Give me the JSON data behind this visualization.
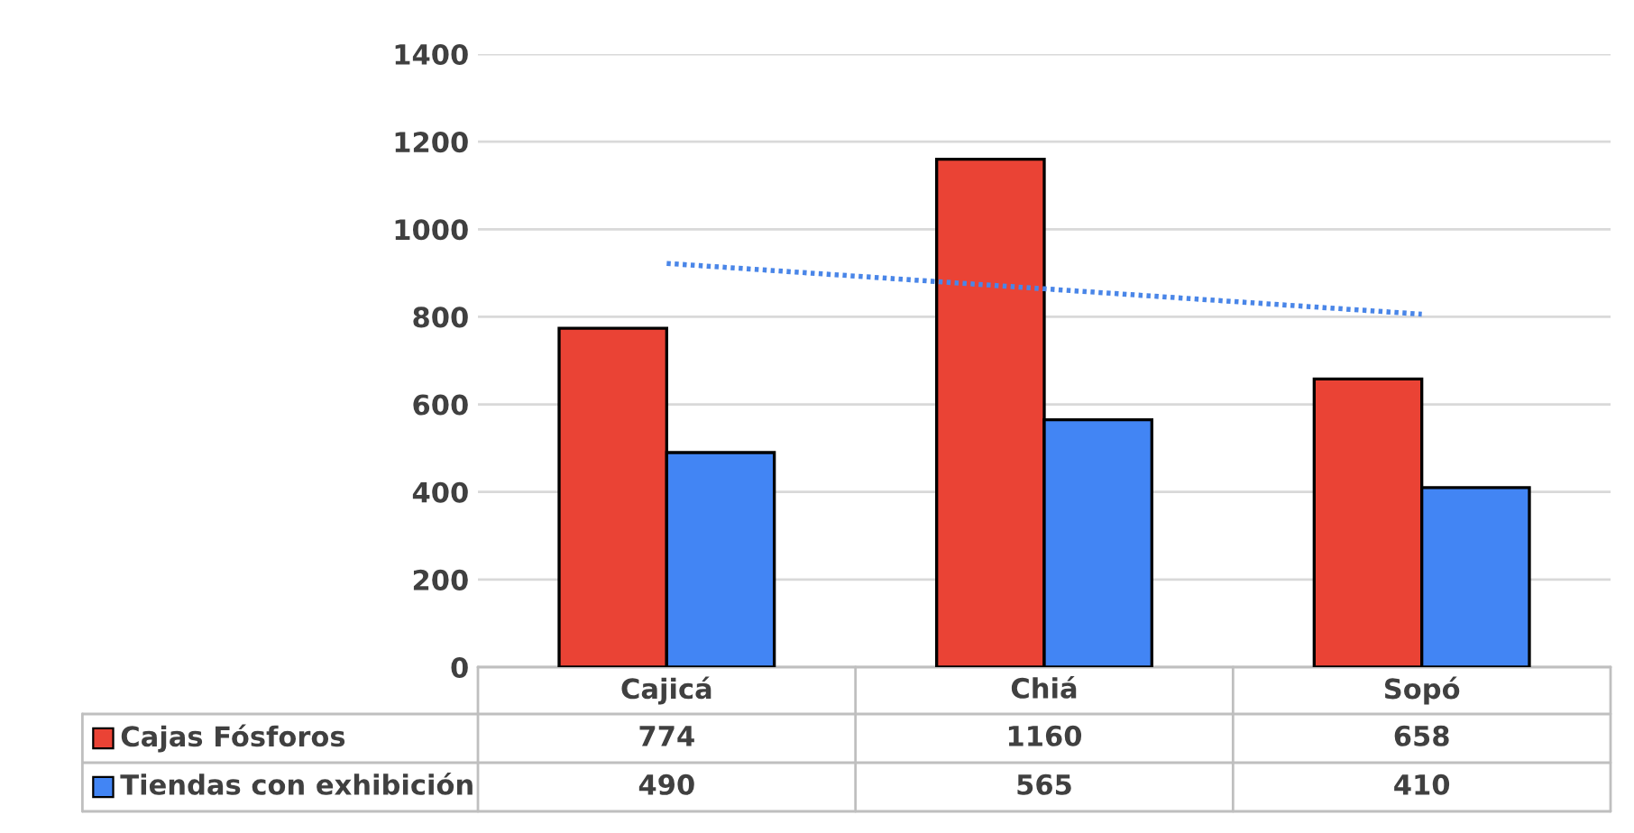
{
  "chart_data": {
    "type": "bar",
    "categories": [
      "Cajicá",
      "Chiá",
      "Sopó"
    ],
    "series": [
      {
        "name": "Cajas Fósforos",
        "color": "#ea4335",
        "values": [
          774,
          1160,
          658
        ],
        "value_labels": [
          "774",
          "1160",
          "658"
        ]
      },
      {
        "name": "Tiendas con exhibición",
        "color": "#4285f4",
        "values": [
          490,
          565,
          410
        ],
        "value_labels": [
          "490",
          "565",
          "410"
        ]
      },
      {
        "type": "line",
        "color": "#4a86e8",
        "line_style": "dotted",
        "values": [
          922,
          864,
          806
        ]
      }
    ],
    "ylim": [
      0,
      1400
    ],
    "yticks": [
      0,
      200,
      400,
      600,
      800,
      1000,
      1200,
      1400
    ],
    "grid": "y",
    "legend": "bottom"
  }
}
